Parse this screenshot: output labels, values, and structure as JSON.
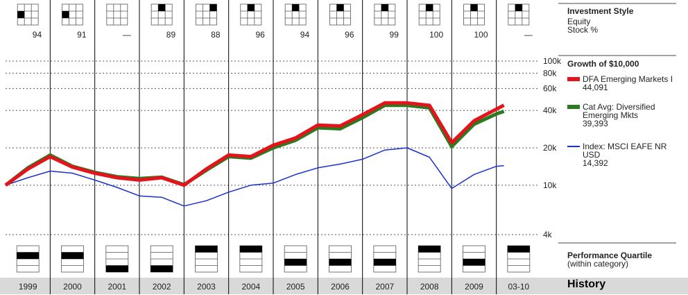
{
  "investment_style": {
    "title": "Investment Style",
    "lines": [
      "Equity",
      "Stock %"
    ]
  },
  "chart_data": {
    "type": "line",
    "title": "Growth of $10,000",
    "log_scale": true,
    "grid": true,
    "x": [
      1999,
      1999.5,
      2000,
      2000.5,
      2001,
      2001.5,
      2002,
      2002.5,
      2003,
      2003.5,
      2004,
      2004.5,
      2005,
      2005.5,
      2006,
      2006.5,
      2007,
      2007.5,
      2008,
      2008.5,
      2009,
      2009.5,
      2010,
      2010.17
    ],
    "xlim": [
      1999,
      2011
    ],
    "ylim": [
      4000,
      100000
    ],
    "yticks": [
      {
        "value": 4000,
        "label": "4k"
      },
      {
        "value": 10000,
        "label": "10k"
      },
      {
        "value": 20000,
        "label": "20k"
      },
      {
        "value": 40000,
        "label": "40k"
      },
      {
        "value": 60000,
        "label": "60k"
      },
      {
        "value": 80000,
        "label": "80k"
      },
      {
        "value": 100000,
        "label": "100k"
      }
    ],
    "series": [
      {
        "name": "DFA Emerging Markets I",
        "color": "#e3141c",
        "legend_value": "44,091",
        "values": [
          10000,
          13500,
          17000,
          14000,
          12500,
          11500,
          11000,
          11500,
          10000,
          13500,
          17500,
          17000,
          21000,
          24000,
          30500,
          30000,
          37000,
          46000,
          46000,
          44000,
          22000,
          33000,
          41000,
          44091
        ]
      },
      {
        "name": "Cat Avg: Diversified Emerging Mkts",
        "color": "#2a7a1f",
        "legend_value": "39,393",
        "values": [
          10000,
          13800,
          17500,
          14200,
          12700,
          11700,
          11300,
          11600,
          10100,
          13200,
          17000,
          16500,
          20000,
          23000,
          29000,
          28500,
          35000,
          44000,
          44000,
          42000,
          20500,
          31000,
          37500,
          39393
        ]
      },
      {
        "name": "Index: MSCI EAFE NR USD",
        "color": "#1a2fd0",
        "legend_value": "14,392",
        "values": [
          10000,
          11500,
          13000,
          12500,
          11000,
          9600,
          8200,
          8000,
          6800,
          7500,
          8800,
          10000,
          10400,
          12200,
          13800,
          14800,
          16200,
          19200,
          20000,
          16800,
          9400,
          12200,
          14200,
          14392
        ]
      }
    ]
  },
  "style_boxes": [
    {
      "cell": [
        1,
        0
      ],
      "stock_pct": 94
    },
    {
      "cell": [
        1,
        0
      ],
      "stock_pct": 91
    },
    {
      "cell": null,
      "stock_pct": "—"
    },
    {
      "cell": [
        0,
        1
      ],
      "stock_pct": 89
    },
    {
      "cell": [
        0,
        2
      ],
      "stock_pct": 88
    },
    {
      "cell": [
        0,
        1
      ],
      "stock_pct": 96
    },
    {
      "cell": [
        0,
        1
      ],
      "stock_pct": 94
    },
    {
      "cell": [
        0,
        1
      ],
      "stock_pct": 96
    },
    {
      "cell": [
        0,
        1
      ],
      "stock_pct": 99
    },
    {
      "cell": [
        0,
        1
      ],
      "stock_pct": 100
    },
    {
      "cell": [
        0,
        1
      ],
      "stock_pct": 100
    },
    {
      "cell": [
        0,
        1
      ],
      "stock_pct": "—"
    }
  ],
  "performance_quartile": {
    "title": "Performance Quartile",
    "subtitle": "(within category)",
    "quartiles": [
      2,
      2,
      4,
      4,
      1,
      1,
      3,
      3,
      3,
      1,
      3,
      1
    ]
  },
  "history": {
    "title": "History",
    "categories": [
      "1999",
      "2000",
      "2001",
      "2002",
      "2003",
      "2004",
      "2005",
      "2006",
      "2007",
      "2008",
      "2009",
      "03-10"
    ]
  }
}
